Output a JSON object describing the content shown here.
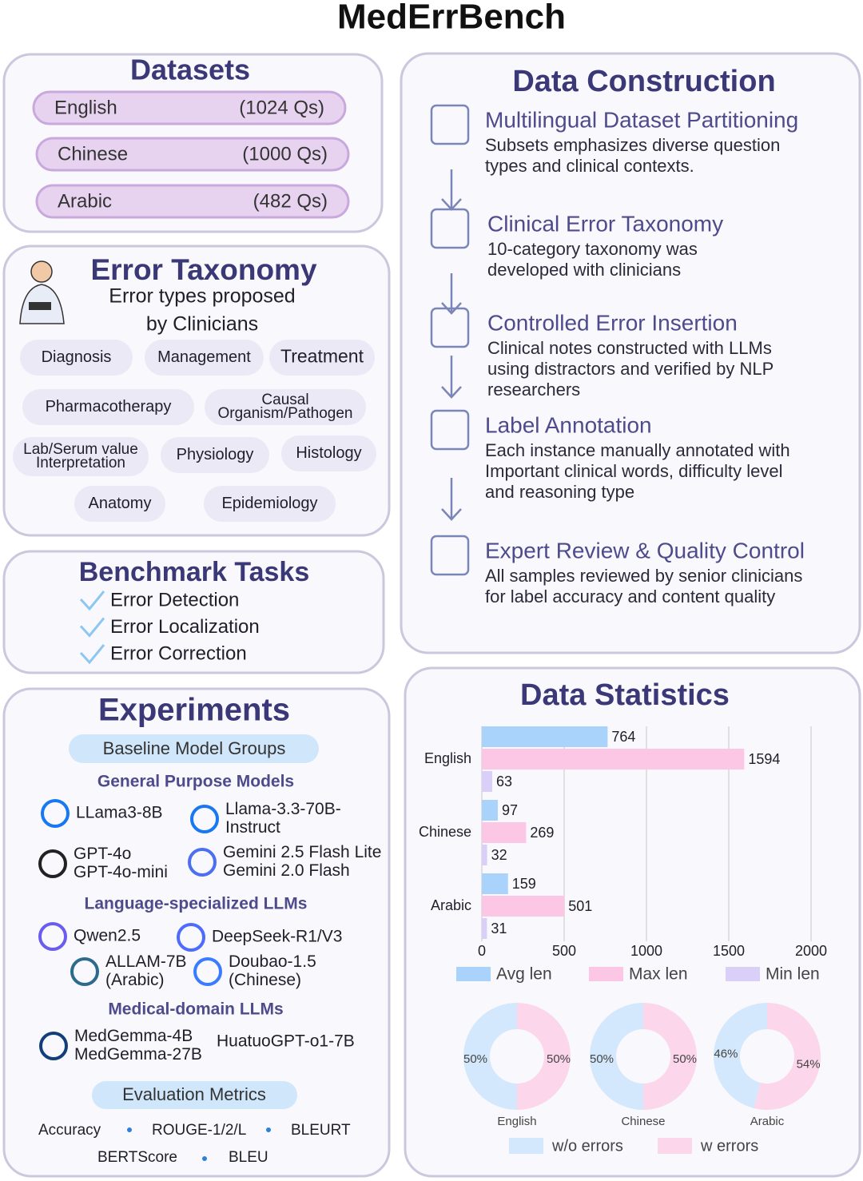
{
  "title": "MedErrBench",
  "datasets": {
    "title": "Datasets",
    "items": [
      {
        "name": "English",
        "count": "(1024 Qs)"
      },
      {
        "name": "Chinese",
        "count": "(1000 Qs)"
      },
      {
        "name": "Arabic",
        "count": "(482 Qs)"
      }
    ]
  },
  "error_taxonomy": {
    "title": "Error Taxonomy",
    "subtitle": [
      "Error types proposed",
      "by Clinicians"
    ],
    "categories": [
      [
        "Diagnosis"
      ],
      [
        "Management"
      ],
      [
        "Treatment"
      ],
      [
        "Pharmacotherapy"
      ],
      [
        "Causal",
        "Organism/Pathogen"
      ],
      [
        "Lab/Serum value",
        "Interpretation"
      ],
      [
        "Physiology"
      ],
      [
        "Histology"
      ],
      [
        "Anatomy"
      ],
      [
        "Epidemiology"
      ]
    ]
  },
  "benchmark_tasks": {
    "title": "Benchmark Tasks",
    "tasks": [
      "Error Detection",
      "Error Localization",
      "Error Correction"
    ]
  },
  "experiments": {
    "title": "Experiments",
    "baseline_label": "Baseline Model Groups",
    "groups": [
      {
        "name": "General Purpose Models",
        "models": [
          [
            "LLama3-8B"
          ],
          [
            "Llama-3.3-70B-",
            "Instruct"
          ],
          [
            "GPT-4o",
            "GPT-4o-mini"
          ],
          [
            "Gemini 2.5 Flash Lite",
            "Gemini 2.0 Flash"
          ]
        ]
      },
      {
        "name": "Language-specialized LLMs",
        "models": [
          [
            "Qwen2.5"
          ],
          [
            "DeepSeek-R1/V3"
          ],
          [
            "ALLAM-7B",
            "(Arabic)"
          ],
          [
            "Doubao-1.5",
            "(Chinese)"
          ]
        ]
      },
      {
        "name": "Medical-domain LLMs",
        "models": [
          [
            "MedGemma-4B",
            "MedGemma-27B"
          ],
          [
            "HuatuoGPT-o1-7B"
          ]
        ]
      }
    ],
    "metrics_label": "Evaluation Metrics",
    "metrics": [
      "Accuracy",
      "ROUGE-1/2/L",
      "BLEURT",
      "BERTScore",
      "BLEU"
    ]
  },
  "data_construction": {
    "title": "Data Construction",
    "steps": [
      {
        "title": "Multilingual Dataset Partitioning",
        "text": [
          "Subsets emphasizes diverse question",
          "types and clinical contexts."
        ]
      },
      {
        "title": "Clinical Error Taxonomy",
        "text": [
          "10-category taxonomy was",
          "developed with clinicians"
        ]
      },
      {
        "title": "Controlled Error Insertion",
        "text": [
          "Clinical notes constructed with LLMs",
          "using distractors and verified by NLP",
          "researchers"
        ]
      },
      {
        "title": "Label Annotation",
        "text": [
          "Each instance manually annotated with",
          "Important clinical words, difficulty level",
          "and reasoning type"
        ]
      },
      {
        "title": "Expert Review & Quality Control",
        "text": [
          "All samples reviewed by senior clinicians",
          "for label accuracy and content quality"
        ]
      }
    ]
  },
  "data_statistics": {
    "title": "Data Statistics",
    "bar_chart": {
      "type": "bar",
      "orientation": "horizontal",
      "categories": [
        "English",
        "Chinese",
        "Arabic"
      ],
      "series": [
        {
          "name": "Avg len",
          "color": "#a9d3fb",
          "values": [
            764,
            97,
            159
          ]
        },
        {
          "name": "Max len",
          "color": "#fcc6e5",
          "values": [
            1594,
            269,
            501
          ]
        },
        {
          "name": "Min len",
          "color": "#d9cff9",
          "values": [
            63,
            32,
            31
          ]
        }
      ],
      "xlim": [
        0,
        2000
      ],
      "xticks": [
        0,
        500,
        1000,
        1500,
        2000
      ],
      "grid": true,
      "legend": "bottom"
    },
    "donut_chart": {
      "type": "donut",
      "categories": [
        "w/o errors",
        "w errors"
      ],
      "colors": [
        "#d3e8fc",
        "#fcd6eb"
      ],
      "legend": "bottom",
      "charts": [
        {
          "name": "English",
          "values": [
            50,
            50
          ],
          "value_labels": [
            "50%",
            "50%"
          ]
        },
        {
          "name": "Chinese",
          "values": [
            50,
            50
          ],
          "value_labels": [
            "50%",
            "50%"
          ]
        },
        {
          "name": "Arabic",
          "values": [
            46,
            54
          ],
          "value_labels": [
            "46%",
            "54%"
          ]
        }
      ]
    }
  }
}
